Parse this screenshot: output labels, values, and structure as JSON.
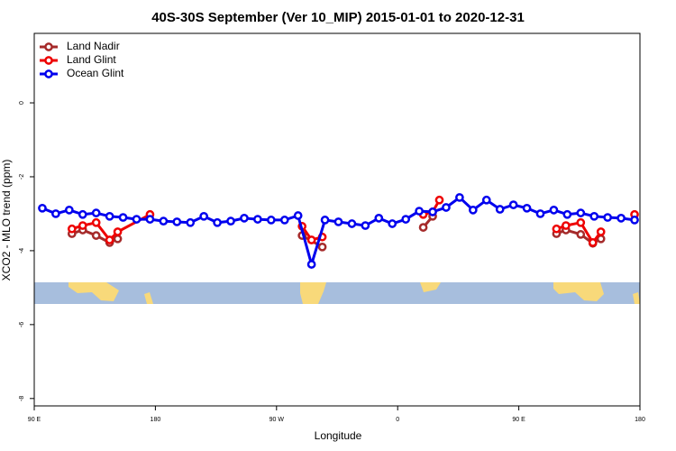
{
  "chart_data": {
    "type": "line",
    "title": "40S-30S September (Ver 10_MIP)   2015-01-01 to 2020-12-31",
    "x_label": "Longitude",
    "y_label": "XCO2 - MLO trend (ppm)",
    "xlim": [
      90,
      540
    ],
    "ylim": [
      -8.2,
      1.88
    ],
    "xticks": [
      {
        "value": 90,
        "label": "90 E"
      },
      {
        "value": 180,
        "label": "180"
      },
      {
        "value": 270,
        "label": "90 W"
      },
      {
        "value": 360,
        "label": "0"
      },
      {
        "value": 450,
        "label": "90 E"
      },
      {
        "value": 540,
        "label": "180"
      }
    ],
    "yticks": [
      0,
      -2,
      -4,
      -6,
      -8
    ],
    "legend": "top-left",
    "series": [
      {
        "name": "Land Nadir",
        "color": "#a52a2a",
        "x": [
          118,
          126,
          136,
          146,
          152,
          220,
          289,
          304,
          340,
          379,
          386,
          430,
          478,
          485,
          496,
          505,
          511
        ],
        "values": [
          -3.54,
          -3.44,
          -3.59,
          -3.78,
          -3.68,
          null,
          -3.59,
          -3.9,
          null,
          -3.37,
          -3.07,
          null,
          -3.54,
          -3.44,
          -3.56,
          -3.8,
          -3.68
        ]
      },
      {
        "name": "Land Glint",
        "color": "#ee0000",
        "x": [
          118,
          126,
          136,
          146,
          152,
          176,
          230,
          289,
          296,
          304,
          340,
          379,
          386,
          391,
          430,
          478,
          485,
          496,
          505,
          511,
          520,
          536
        ],
        "values": [
          -3.41,
          -3.32,
          -3.24,
          -3.71,
          -3.49,
          -3.02,
          null,
          -3.34,
          -3.71,
          -3.63,
          null,
          -3.02,
          -2.95,
          -2.63,
          null,
          -3.41,
          -3.32,
          -3.24,
          -3.78,
          -3.49,
          null,
          -3.02
        ]
      },
      {
        "name": "Ocean Glint",
        "color": "#0000ee",
        "x": [
          96,
          106,
          116,
          126,
          136,
          146,
          156,
          166,
          176,
          186,
          196,
          206,
          216,
          226,
          236,
          246,
          256,
          266,
          276,
          286,
          296,
          306,
          316,
          326,
          336,
          346,
          356,
          366,
          376,
          386,
          396,
          406,
          416,
          426,
          436,
          446,
          456,
          466,
          476,
          486,
          496,
          506,
          516,
          526,
          536
        ],
        "values": [
          -2.85,
          -3.0,
          -2.9,
          -3.02,
          -2.98,
          -3.07,
          -3.1,
          -3.15,
          -3.15,
          -3.2,
          -3.22,
          -3.24,
          -3.07,
          -3.24,
          -3.2,
          -3.12,
          -3.15,
          -3.17,
          -3.17,
          -3.05,
          -4.37,
          -3.17,
          -3.22,
          -3.27,
          -3.32,
          -3.12,
          -3.27,
          -3.15,
          -2.93,
          -2.95,
          -2.83,
          -2.56,
          -2.9,
          -2.63,
          -2.88,
          -2.76,
          -2.85,
          -3.0,
          -2.9,
          -3.02,
          -2.98,
          -3.07,
          -3.1,
          -3.12,
          -3.17
        ]
      }
    ]
  }
}
